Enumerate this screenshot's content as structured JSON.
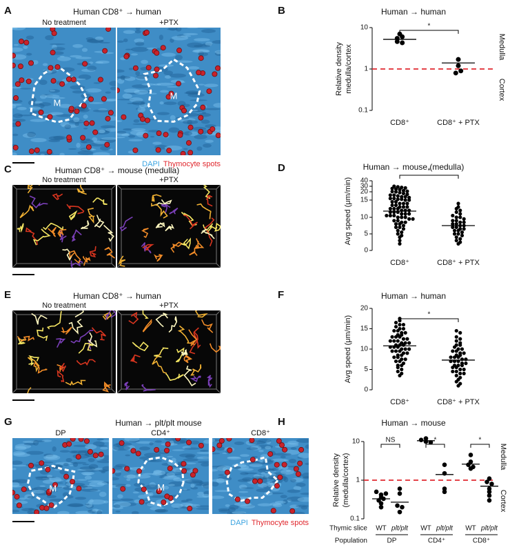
{
  "image_panels": [
    {
      "letter": "A",
      "title": "Human CD8⁺ → human",
      "images": [
        {
          "label": "No treatment",
          "region": "M"
        },
        {
          "label": "+PTX",
          "region": "M"
        }
      ],
      "legend": [
        {
          "name": "DAPI",
          "color": "#3aa3e0"
        },
        {
          "name": "Thymocyte spots",
          "color": "#e0282e"
        }
      ]
    },
    {
      "letter": "C",
      "title": "Human CD8⁺ → mouse (medulla)",
      "images": [
        {
          "label": "No treatment"
        },
        {
          "label": "+PTX"
        }
      ]
    },
    {
      "letter": "E",
      "title": "Human CD8⁺ → human",
      "images": [
        {
          "label": "No treatment"
        },
        {
          "label": "+PTX"
        }
      ]
    },
    {
      "letter": "G",
      "title": "Human → plt/plt mouse",
      "images": [
        {
          "label": "DP",
          "region": "M"
        },
        {
          "label": "CD4⁺",
          "region": "M"
        },
        {
          "label": "CD8⁺"
        }
      ],
      "legend": [
        {
          "name": "DAPI",
          "color": "#3aa3e0"
        },
        {
          "name": "Thymocyte spots",
          "color": "#e0282e"
        }
      ]
    }
  ],
  "chart_data": [
    {
      "type": "dot",
      "letter": "B",
      "title": "Human → human",
      "y_label": [
        "Relative density",
        "medulla/cortex"
      ],
      "categories": [
        "CD8⁺",
        "CD8⁺ + PTX"
      ],
      "log_scale": true,
      "ylim": [
        0.1,
        10
      ],
      "yticks": [
        0.1,
        1,
        10
      ],
      "values": [
        [
          7,
          5.5,
          4.6,
          4.3,
          6
        ],
        [
          1.7,
          1.2,
          0.8,
          0.9
        ]
      ],
      "means": [
        5.2,
        1.4
      ],
      "brackets": [
        "*"
      ],
      "reference_line": 1,
      "reference_color": "#e0282e",
      "color": "#000000",
      "side_labels": [
        "Medulla",
        "Cortex"
      ]
    },
    {
      "type": "dot",
      "letter": "D",
      "title": "Human → mouse (medulla)",
      "y_label": [
        "Avg speed (μm/min)"
      ],
      "categories": [
        "CD8⁺",
        "CD8⁺ + PTX"
      ],
      "ylim": [
        0,
        40
      ],
      "yticks": [
        0,
        5,
        10,
        15,
        20,
        30,
        40
      ],
      "values": [
        [
          30,
          29,
          28,
          27,
          26,
          25,
          24,
          22,
          21,
          20.5,
          20,
          19.5,
          19,
          18.5,
          18,
          18,
          17.5,
          17,
          17,
          16.5,
          16,
          16,
          15.5,
          15.5,
          15,
          15,
          14.5,
          14.5,
          14,
          14,
          14,
          13.5,
          13.5,
          13,
          13,
          13,
          12.5,
          12.5,
          12.5,
          12,
          12,
          12,
          11.5,
          11.5,
          11.5,
          11,
          11,
          11,
          10.5,
          10.5,
          10.5,
          10,
          10,
          10,
          9.5,
          9.5,
          9,
          9,
          8.5,
          8.5,
          8,
          8,
          7.5,
          7,
          7,
          6.5,
          6,
          5.5,
          5,
          4.5,
          4,
          3,
          2
        ],
        [
          14,
          13,
          12.5,
          12,
          11.5,
          11,
          10.5,
          10,
          10,
          9.5,
          9,
          9,
          8.5,
          8.5,
          8,
          8,
          7.5,
          7.5,
          7,
          7,
          6.5,
          6.5,
          6,
          6,
          5.5,
          5,
          5,
          4.5,
          4,
          3.5,
          3,
          2.5,
          2
        ]
      ],
      "means": [
        11.8,
        7.5
      ],
      "brackets": [
        "*"
      ],
      "color": "#000000"
    },
    {
      "type": "dot",
      "letter": "F",
      "title": "Human → human",
      "y_label": [
        "Avg speed (μm/min)"
      ],
      "categories": [
        "CD8⁺",
        "CD8⁺ + PTX"
      ],
      "ylim": [
        0,
        20
      ],
      "yticks": [
        0,
        5,
        10,
        15,
        20
      ],
      "values": [
        [
          17.5,
          17,
          16.5,
          16,
          16,
          15.5,
          15,
          15,
          14.5,
          14.5,
          14,
          14,
          13.5,
          13.5,
          13,
          13,
          13,
          12.5,
          12.5,
          12,
          12,
          12,
          11.5,
          11.5,
          11.5,
          11,
          11,
          11,
          10.5,
          10.5,
          10.5,
          10,
          10,
          10,
          9.5,
          9.5,
          9.5,
          9,
          9,
          8.5,
          8.5,
          8,
          8,
          7.5,
          7.5,
          7,
          7,
          6.5,
          6,
          6,
          5.5,
          5,
          4.5,
          4,
          3.5
        ],
        [
          14.5,
          14,
          13,
          12.5,
          12,
          11.5,
          11,
          11,
          10.5,
          10,
          10,
          9.5,
          9.5,
          9,
          9,
          8.5,
          8.5,
          8,
          8,
          8,
          7.5,
          7.5,
          7,
          7,
          7,
          6.5,
          6.5,
          6,
          6,
          6,
          5.5,
          5.5,
          5,
          5,
          4.5,
          4.5,
          4,
          4,
          3.5,
          3,
          2.5,
          2,
          1.5,
          1
        ]
      ],
      "means": [
        10.8,
        7.3
      ],
      "brackets": [
        "*"
      ],
      "color": "#000000"
    },
    {
      "type": "dot",
      "letter": "H",
      "title": "Human → mouse",
      "y_label": [
        "Relative density",
        "(medulla/cortex)"
      ],
      "categories": [
        "WT",
        "plt/plt",
        "WT",
        "plt/plt",
        "WT",
        "plt/plt"
      ],
      "populations": [
        "DP",
        "CD4⁺",
        "CD8⁺"
      ],
      "row_labels": [
        "Thymic slice",
        "Population"
      ],
      "log_scale": true,
      "ylim": [
        0.1,
        10
      ],
      "yticks": [
        0.1,
        1,
        10
      ],
      "values": [
        [
          0.5,
          0.42,
          0.36,
          0.3,
          0.33,
          0.25,
          0.2,
          0.45
        ],
        [
          0.6,
          0.45,
          0.22,
          0.15,
          0.2
        ],
        [
          12,
          11,
          10,
          9.5
        ],
        [
          2.5,
          1.5,
          0.6,
          0.5
        ],
        [
          4.5,
          3,
          2.5,
          2.2,
          2
        ],
        [
          1.1,
          0.9,
          0.8,
          0.6,
          0.5,
          0.4,
          0.3
        ]
      ],
      "means": [
        0.33,
        0.27,
        10.5,
        1.4,
        2.6,
        0.7
      ],
      "brackets": [
        "NS",
        "*",
        "*"
      ],
      "reference_line": 1,
      "reference_color": "#e0282e",
      "color": "#000000",
      "side_labels": [
        "Medulla",
        "Cortex"
      ]
    }
  ]
}
